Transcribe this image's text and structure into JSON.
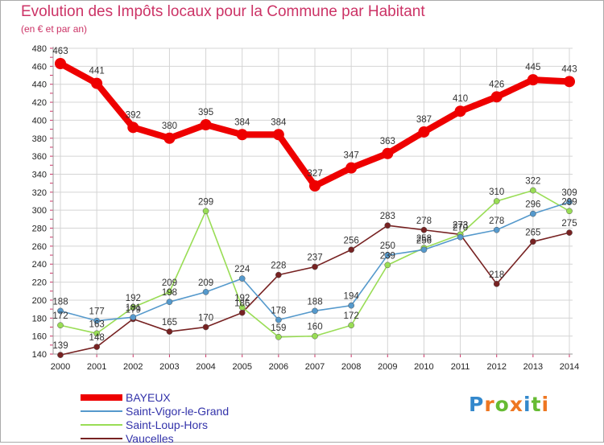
{
  "chart_data": {
    "type": "line",
    "title": "Evolution des Impôts locaux pour la Commune par Habitant",
    "subtitle": "(en € et par an)",
    "xlabel": "",
    "ylabel": "",
    "categories": [
      "2000",
      "2001",
      "2002",
      "2003",
      "2004",
      "2005",
      "2006",
      "2007",
      "2008",
      "2009",
      "2010",
      "2011",
      "2012",
      "2013",
      "2014"
    ],
    "yticks": [
      140,
      160,
      180,
      200,
      220,
      240,
      260,
      280,
      300,
      320,
      340,
      360,
      380,
      400,
      420,
      440,
      460,
      480
    ],
    "ylim": [
      140,
      480
    ],
    "grid": true,
    "legend_position": "bottom-left",
    "series": [
      {
        "name": "BAYEUX",
        "color": "#ee0000",
        "values": [
          463,
          441,
          392,
          380,
          395,
          384,
          384,
          327,
          347,
          363,
          387,
          410,
          426,
          445,
          443
        ]
      },
      {
        "name": "Saint-Vigor-le-Grand",
        "color": "#5599cc",
        "values": [
          188,
          177,
          181,
          198,
          209,
          224,
          178,
          188,
          194,
          250,
          256,
          270,
          278,
          296,
          309
        ]
      },
      {
        "name": "Saint-Loup-Hors",
        "color": "#99dd55",
        "values": [
          172,
          163,
          192,
          209,
          299,
          192,
          159,
          160,
          172,
          239,
          258,
          273,
          310,
          322,
          299
        ]
      },
      {
        "name": "Vaucelles",
        "color": "#772222",
        "values": [
          139,
          148,
          179,
          165,
          170,
          186,
          228,
          237,
          256,
          283,
          278,
          273,
          218,
          265,
          275
        ]
      }
    ]
  },
  "brand": {
    "name": "Proxiti",
    "letters": [
      "P",
      "r",
      "o",
      "x",
      "i",
      "t",
      "i"
    ],
    "colors": [
      "#3388cc",
      "#ee7722",
      "#66bb33",
      "#ee7722",
      "#3388cc",
      "#66bb33",
      "#ee7722"
    ]
  }
}
